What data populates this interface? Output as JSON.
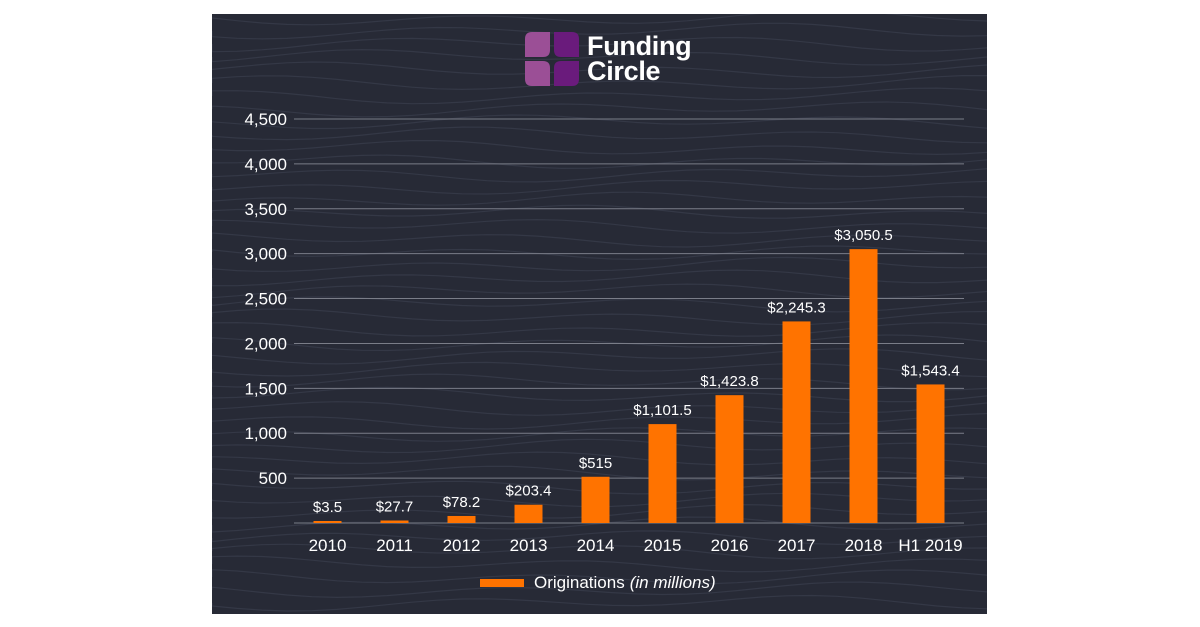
{
  "brand": {
    "name_line1": "Funding",
    "name_line2": "Circle",
    "mark_colors": [
      "#9b4f96",
      "#6a1b7c"
    ]
  },
  "theme": {
    "background": "#272a36",
    "bar_color": "#ff7300",
    "grid_color": "#7a7d88",
    "text_color": "#ffffff"
  },
  "chart_data": {
    "type": "bar",
    "categories": [
      "2010",
      "2011",
      "2012",
      "2013",
      "2014",
      "2015",
      "2016",
      "2017",
      "2018",
      "H1 2019"
    ],
    "series": [
      {
        "name": "Originations",
        "values": [
          3.5,
          27.7,
          78.2,
          203.4,
          515,
          1101.5,
          1423.8,
          2245.3,
          3050.5,
          1543.4
        ],
        "data_labels": [
          "$3.5",
          "$27.7",
          "$78.2",
          "$203.4",
          "$515",
          "$1,101.5",
          "$1,423.8",
          "$2,245.3",
          "$3,050.5",
          "$1,543.4"
        ]
      }
    ],
    "legend": {
      "label": "Originations",
      "unit_note": "(in millions)",
      "placement": "bottom-center"
    },
    "ylim": [
      0,
      4500
    ],
    "yticks": [
      500,
      1000,
      1500,
      2000,
      2500,
      3000,
      3500,
      4000,
      4500
    ],
    "ytick_labels": [
      "500",
      "1,000",
      "1,500",
      "2,000",
      "2,500",
      "3,000",
      "3,500",
      "4,000",
      "4,500"
    ],
    "grid": true
  }
}
